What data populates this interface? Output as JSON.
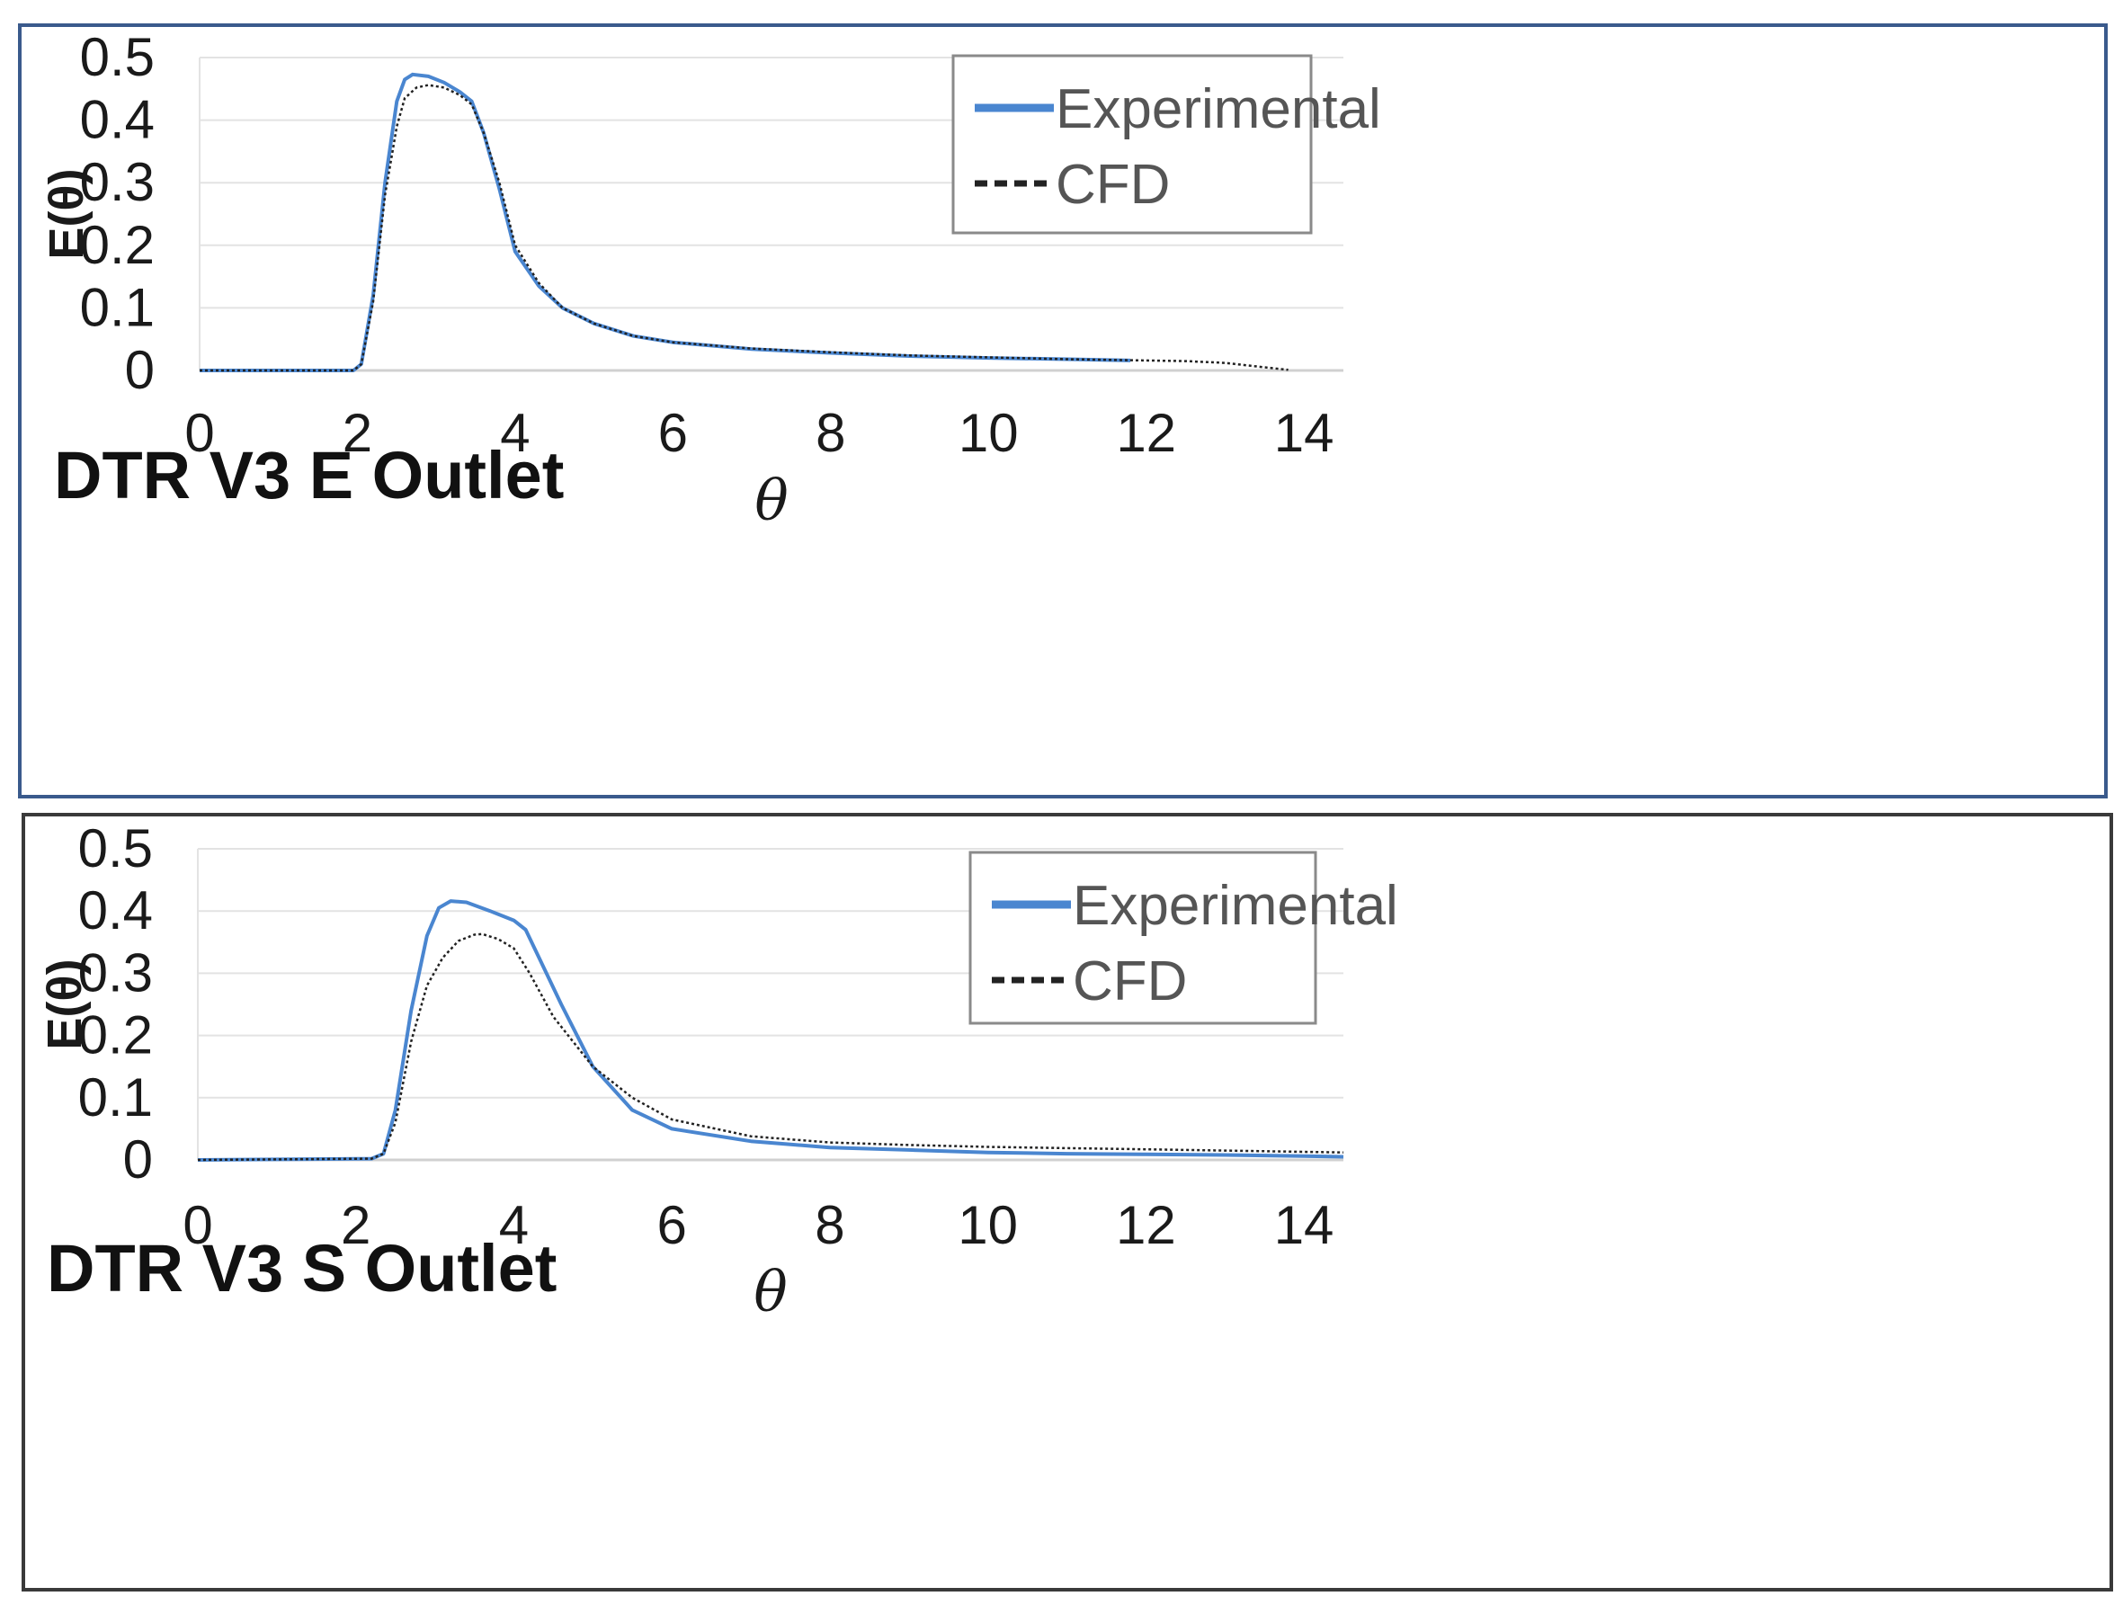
{
  "colors": {
    "experimental": "#4a86d0",
    "cfd": "#222222",
    "panel1_border": "#3a5a8c",
    "panel2_border": "#3a3a3a"
  },
  "chart_data": [
    {
      "type": "line",
      "title": "DTR V3 E Outlet",
      "xlabel": "θ",
      "ylabel": "E(θ)",
      "xlim": [
        0,
        14.5
      ],
      "ylim": [
        0,
        0.5
      ],
      "xticks": [
        "0",
        "2",
        "4",
        "6",
        "8",
        "10",
        "12",
        "14"
      ],
      "yticks": [
        "0",
        "0.1",
        "0.2",
        "0.3",
        "0.4",
        "0.5"
      ],
      "grid": true,
      "legend": "top-right",
      "series": [
        {
          "name": "Experimental",
          "style": "solid",
          "x": [
            0,
            1.95,
            2.05,
            2.2,
            2.35,
            2.5,
            2.6,
            2.7,
            2.9,
            3.1,
            3.3,
            3.45,
            3.6,
            3.8,
            4.0,
            4.3,
            4.6,
            5.0,
            5.5,
            6.0,
            7.0,
            8.0,
            9.0,
            10.0,
            11.0,
            11.8
          ],
          "y": [
            0,
            0,
            0.01,
            0.12,
            0.3,
            0.43,
            0.465,
            0.473,
            0.47,
            0.46,
            0.445,
            0.43,
            0.38,
            0.29,
            0.19,
            0.135,
            0.1,
            0.075,
            0.055,
            0.045,
            0.034,
            0.028,
            0.023,
            0.02,
            0.018,
            0.016
          ]
        },
        {
          "name": "CFD",
          "style": "dashed",
          "x": [
            0,
            1.95,
            2.05,
            2.2,
            2.35,
            2.5,
            2.6,
            2.75,
            2.9,
            3.1,
            3.3,
            3.45,
            3.6,
            3.8,
            4.0,
            4.3,
            4.6,
            5.0,
            5.5,
            6.0,
            7.0,
            8.0,
            9.0,
            10.0,
            11.0,
            12.0,
            12.5,
            13.0,
            13.5,
            13.8
          ],
          "y": [
            0,
            0,
            0.01,
            0.11,
            0.28,
            0.39,
            0.435,
            0.452,
            0.456,
            0.452,
            0.44,
            0.425,
            0.38,
            0.3,
            0.2,
            0.14,
            0.1,
            0.075,
            0.055,
            0.045,
            0.035,
            0.029,
            0.024,
            0.021,
            0.018,
            0.016,
            0.015,
            0.012,
            0.005,
            0.001
          ]
        }
      ]
    },
    {
      "type": "line",
      "title": "DTR V3 S Outlet",
      "xlabel": "θ",
      "ylabel": "E(θ)",
      "xlim": [
        0,
        14.5
      ],
      "ylim": [
        0,
        0.5
      ],
      "xticks": [
        "0",
        "2",
        "4",
        "6",
        "8",
        "10",
        "12",
        "14"
      ],
      "yticks": [
        "0",
        "0.1",
        "0.2",
        "0.3",
        "0.4",
        "0.5"
      ],
      "grid": true,
      "legend": "top-right",
      "series": [
        {
          "name": "Experimental",
          "style": "solid",
          "x": [
            0,
            2.2,
            2.35,
            2.5,
            2.7,
            2.9,
            3.05,
            3.2,
            3.4,
            3.7,
            4.0,
            4.15,
            4.3,
            4.6,
            5.0,
            5.5,
            6.0,
            7.0,
            8.0,
            9.0,
            10.0,
            11.0,
            12.0,
            13.0,
            14.0,
            14.5
          ],
          "y": [
            0,
            0.002,
            0.01,
            0.08,
            0.24,
            0.36,
            0.405,
            0.416,
            0.414,
            0.4,
            0.385,
            0.37,
            0.33,
            0.25,
            0.15,
            0.08,
            0.05,
            0.03,
            0.02,
            0.016,
            0.012,
            0.01,
            0.009,
            0.008,
            0.006,
            0.005
          ]
        },
        {
          "name": "CFD",
          "style": "dashed",
          "x": [
            0,
            2.2,
            2.35,
            2.5,
            2.7,
            2.9,
            3.1,
            3.3,
            3.5,
            3.6,
            3.8,
            4.0,
            4.2,
            4.5,
            5.0,
            5.5,
            6.0,
            7.0,
            8.0,
            9.0,
            10.0,
            11.0,
            12.0,
            13.0,
            14.0,
            14.5
          ],
          "y": [
            0,
            0.002,
            0.01,
            0.06,
            0.19,
            0.28,
            0.325,
            0.352,
            0.362,
            0.363,
            0.355,
            0.34,
            0.3,
            0.23,
            0.15,
            0.1,
            0.065,
            0.038,
            0.028,
            0.024,
            0.021,
            0.019,
            0.017,
            0.015,
            0.013,
            0.012
          ]
        }
      ]
    }
  ]
}
